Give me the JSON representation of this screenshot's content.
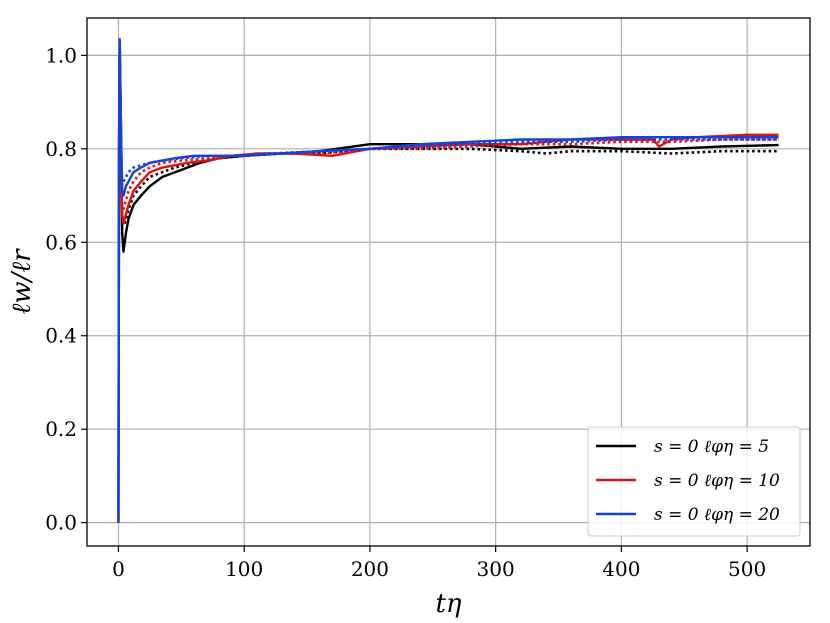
{
  "chart_data": {
    "type": "line",
    "xlabel": "tη",
    "ylabel": "ℓw/ℓr",
    "xlim": [
      -25,
      550
    ],
    "ylim": [
      -0.05,
      1.08
    ],
    "xticks": [
      0,
      100,
      200,
      300,
      400,
      500
    ],
    "yticks": [
      0.0,
      0.2,
      0.4,
      0.6,
      0.8,
      1.0
    ],
    "xtick_labels": [
      "0",
      "100",
      "200",
      "300",
      "400",
      "500"
    ],
    "ytick_labels": [
      "0.0",
      "0.2",
      "0.4",
      "0.6",
      "0.8",
      "1.0"
    ],
    "grid": true,
    "legend_position": "lower-right",
    "series": [
      {
        "name": "s = 0 ℓφη = 5",
        "color": "#000000",
        "style": "solid",
        "x": [
          0,
          0.5,
          1,
          2,
          3,
          4,
          6,
          8,
          12,
          18,
          25,
          35,
          45,
          55,
          65,
          80,
          100,
          130,
          160,
          200,
          240,
          280,
          320,
          360,
          400,
          440,
          480,
          525
        ],
        "y": [
          0.0,
          0.8,
          1.03,
          0.85,
          0.62,
          0.58,
          0.62,
          0.65,
          0.68,
          0.7,
          0.72,
          0.74,
          0.75,
          0.76,
          0.77,
          0.78,
          0.785,
          0.79,
          0.795,
          0.81,
          0.81,
          0.81,
          0.8,
          0.805,
          0.8,
          0.8,
          0.805,
          0.808
        ]
      },
      {
        "name": "",
        "color": "#000000",
        "style": "dotted",
        "x": [
          5,
          8,
          12,
          18,
          25,
          35,
          45,
          60,
          80,
          100,
          130,
          160,
          200,
          240,
          280,
          320,
          340,
          360,
          400,
          440,
          480,
          525
        ],
        "y": [
          0.64,
          0.67,
          0.7,
          0.72,
          0.74,
          0.75,
          0.76,
          0.77,
          0.78,
          0.785,
          0.79,
          0.79,
          0.8,
          0.8,
          0.8,
          0.795,
          0.79,
          0.795,
          0.795,
          0.79,
          0.795,
          0.795
        ]
      },
      {
        "name": "s = 0 ℓφη = 10",
        "color": "#dd1111",
        "style": "solid",
        "x": [
          0,
          0.5,
          1,
          2,
          3,
          4,
          6,
          8,
          12,
          18,
          25,
          35,
          45,
          55,
          70,
          90,
          110,
          140,
          170,
          200,
          240,
          280,
          320,
          360,
          400,
          425,
          430,
          440,
          460,
          500,
          525
        ],
        "y": [
          0.0,
          0.8,
          1.03,
          0.85,
          0.66,
          0.64,
          0.66,
          0.68,
          0.71,
          0.73,
          0.75,
          0.76,
          0.765,
          0.77,
          0.775,
          0.785,
          0.79,
          0.79,
          0.785,
          0.8,
          0.805,
          0.81,
          0.81,
          0.82,
          0.82,
          0.82,
          0.805,
          0.82,
          0.825,
          0.83,
          0.83
        ]
      },
      {
        "name": "",
        "color": "#dd1111",
        "style": "dotted",
        "x": [
          4,
          6,
          8,
          12,
          18,
          25,
          35,
          50,
          70,
          90,
          120,
          160,
          200,
          240,
          280,
          320,
          360,
          400,
          440,
          480,
          525
        ],
        "y": [
          0.67,
          0.69,
          0.71,
          0.73,
          0.75,
          0.76,
          0.77,
          0.775,
          0.78,
          0.785,
          0.79,
          0.79,
          0.8,
          0.8,
          0.805,
          0.81,
          0.81,
          0.815,
          0.815,
          0.82,
          0.82
        ]
      },
      {
        "name": "s = 0 ℓφη = 20",
        "color": "#1144dd",
        "style": "solid",
        "x": [
          0,
          0.5,
          1,
          2,
          3,
          4,
          6,
          8,
          12,
          18,
          25,
          35,
          45,
          60,
          80,
          100,
          130,
          160,
          200,
          240,
          280,
          320,
          360,
          400,
          440,
          480,
          525
        ],
        "y": [
          0.0,
          0.8,
          1.035,
          0.85,
          0.71,
          0.7,
          0.72,
          0.73,
          0.75,
          0.76,
          0.77,
          0.775,
          0.78,
          0.785,
          0.785,
          0.785,
          0.79,
          0.795,
          0.8,
          0.81,
          0.815,
          0.82,
          0.82,
          0.825,
          0.825,
          0.825,
          0.825
        ]
      },
      {
        "name": "",
        "color": "#1144dd",
        "style": "dotted",
        "x": [
          4,
          6,
          8,
          12,
          18,
          25,
          35,
          50,
          70,
          90,
          120,
          160,
          200,
          240,
          280,
          320,
          360,
          400,
          440,
          480,
          525
        ],
        "y": [
          0.73,
          0.74,
          0.75,
          0.76,
          0.765,
          0.77,
          0.775,
          0.78,
          0.785,
          0.785,
          0.79,
          0.795,
          0.8,
          0.805,
          0.81,
          0.815,
          0.815,
          0.82,
          0.82,
          0.82,
          0.82
        ]
      }
    ]
  }
}
